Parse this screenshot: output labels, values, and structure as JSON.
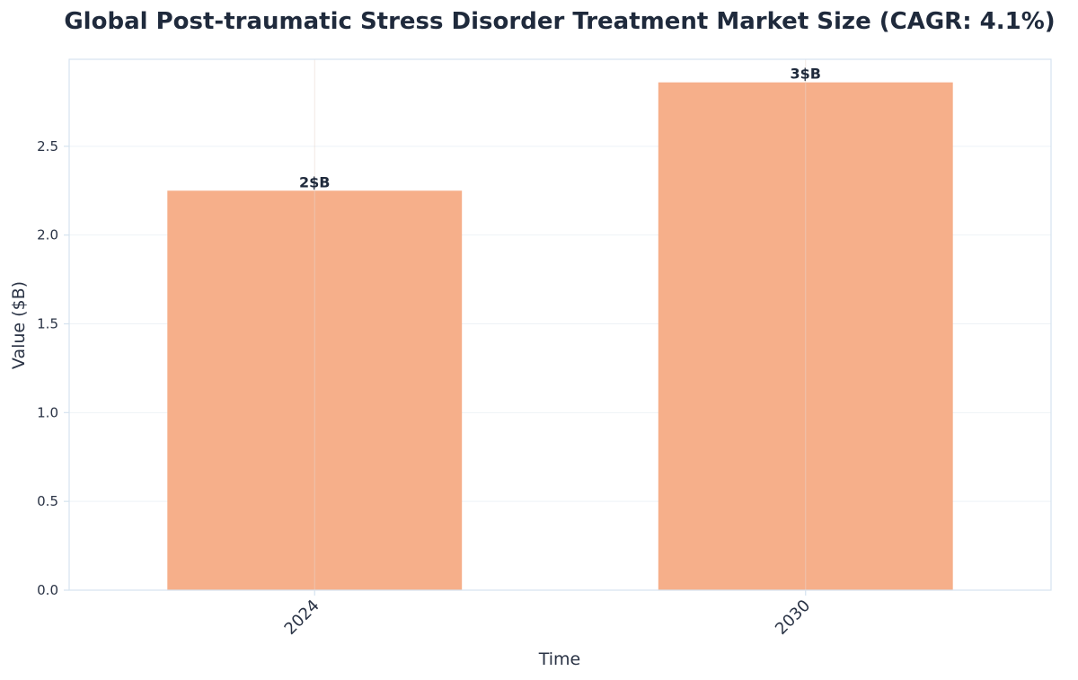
{
  "chart_data": {
    "type": "bar",
    "title": "Global Post-traumatic Stress Disorder Treatment Market Size (CAGR: 4.1%)",
    "xlabel": "Time",
    "ylabel": "Value ($B)",
    "categories": [
      "2024",
      "2030"
    ],
    "values": [
      2.25,
      2.86
    ],
    "data_labels": [
      "2$B",
      "3$B"
    ],
    "ylim": [
      0,
      2.99
    ],
    "yticks": [
      0.0,
      0.5,
      1.0,
      1.5,
      2.0,
      2.5
    ],
    "ytick_labels": [
      "0.0",
      "0.5",
      "1.0",
      "1.5",
      "2.0",
      "2.5"
    ],
    "grid": true,
    "bar_color": "#f6af8a",
    "frame_color": "#d5e3ef",
    "grid_color": "#eef2f6"
  }
}
